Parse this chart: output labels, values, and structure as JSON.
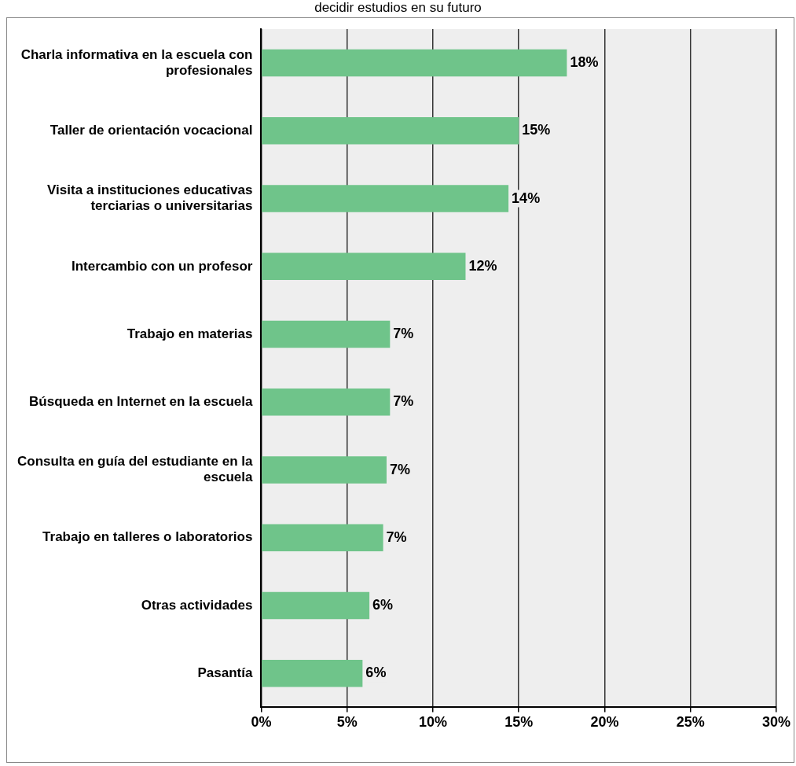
{
  "chart_data": {
    "type": "bar",
    "orientation": "horizontal",
    "title": "decidir estudios en su futuro",
    "categories": [
      "Charla informativa en la escuela con profesionales",
      "Taller de orientación vocacional",
      "Visita a instituciones educativas terciarias o universitarias",
      "Intercambio con un profesor",
      "Trabajo en materias",
      "Búsqueda en Internet en la escuela",
      "Consulta en guía del estudiante en la escuela",
      "Trabajo en talleres o laboratorios",
      "Otras actividades",
      "Pasantía"
    ],
    "values": [
      17.8,
      15.0,
      14.4,
      11.9,
      7.5,
      7.5,
      7.3,
      7.1,
      6.3,
      5.9
    ],
    "value_labels": [
      "18%",
      "15%",
      "14%",
      "12%",
      "7%",
      "7%",
      "7%",
      "7%",
      "6%",
      "6%"
    ],
    "color": "#6fc48a",
    "xlim": [
      0,
      30
    ],
    "xticks": [
      {
        "value": 0,
        "label": "0%"
      },
      {
        "value": 5,
        "label": "5%"
      },
      {
        "value": 10,
        "label": "10%"
      },
      {
        "value": 15,
        "label": "15%"
      },
      {
        "value": 20,
        "label": "20%"
      },
      {
        "value": 25,
        "label": "25%"
      },
      {
        "value": 30,
        "label": "30%"
      }
    ],
    "grid": "x",
    "legend": false
  }
}
